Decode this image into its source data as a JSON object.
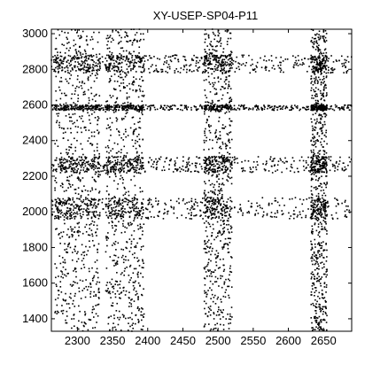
{
  "chart_data": {
    "type": "scatter",
    "title": "XY-USEP-SP04-P11",
    "xlabel": "",
    "ylabel": "",
    "xlim": [
      2263,
      2690
    ],
    "ylim": [
      1330,
      3025
    ],
    "x_ticks": [
      2300,
      2350,
      2400,
      2450,
      2500,
      2550,
      2600,
      2650
    ],
    "y_ticks": [
      1400,
      1600,
      1800,
      2000,
      2200,
      2400,
      2600,
      2800,
      3000
    ],
    "grid": false,
    "legend": "none",
    "marker_color": "#000000",
    "dense_x_bands": [
      [
        2268,
        2333
      ],
      [
        2340,
        2395
      ],
      [
        2480,
        2520
      ],
      [
        2632,
        2655
      ]
    ],
    "dense_y_bands": [
      [
        2780,
        2880
      ],
      [
        2220,
        2310
      ],
      [
        1960,
        2080
      ],
      [
        2570,
        2600
      ]
    ],
    "series": [
      {
        "x": [
          2270,
          2285,
          2300,
          2310,
          2322,
          2345,
          2358,
          2372,
          2390,
          2485,
          2498,
          2510,
          2640,
          2650,
          2280,
          2295,
          2312,
          2350,
          2366,
          2488,
          2505,
          2645,
          2276,
          2302,
          2318,
          2348,
          2380,
          2492,
          2512,
          2638,
          2652,
          2290,
          2306,
          2355,
          2500,
          2642,
          2284,
          2300,
          2316,
          2362,
          2494,
          2648,
          2295,
          2310,
          2498,
          2644
        ],
        "y": [
          2860,
          2840,
          2880,
          2820,
          2850,
          2870,
          2830,
          2845,
          2860,
          2850,
          2870,
          2830,
          2860,
          2820,
          2290,
          2270,
          2300,
          2280,
          2260,
          2290,
          2270,
          2290,
          2050,
          2020,
          2000,
          2040,
          2010,
          2060,
          2020,
          2040,
          2000,
          1800,
          1760,
          1900,
          1880,
          1780,
          1640,
          1600,
          1580,
          1650,
          1520,
          1560,
          1400,
          1380,
          1420,
          1380
        ]
      }
    ]
  }
}
